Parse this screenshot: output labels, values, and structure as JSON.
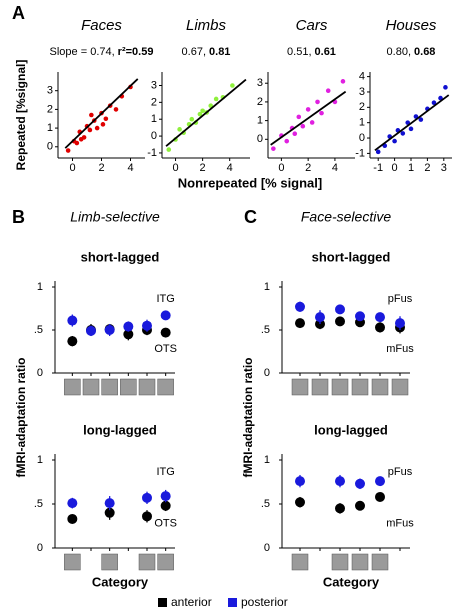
{
  "panels": [
    {
      "label": "A"
    },
    {
      "label": "B",
      "title": "Limb-selective"
    },
    {
      "label": "C",
      "title": "Face-selective"
    }
  ],
  "chart_data": [
    {
      "type": "scatter",
      "title": "Faces",
      "slope_text": "Slope = 0.74,",
      "r2_text": "r²=0.59",
      "color": "#e00000",
      "ylabel": "Repeated [%signal]",
      "xlabel": "Nonrepeated [% signal]",
      "xlim": [
        -1,
        5
      ],
      "ylim": [
        -0.6,
        4
      ],
      "xticks": [
        0,
        2,
        4
      ],
      "yticks": [
        0,
        1,
        2,
        3
      ],
      "x": [
        -0.3,
        0.1,
        0.3,
        0.5,
        0.8,
        1.0,
        1.2,
        1.5,
        1.7,
        2.0,
        2.3,
        2.6,
        3.0,
        3.4,
        4.0,
        0.6,
        1.3,
        2.1
      ],
      "y": [
        -0.2,
        0.3,
        0.2,
        0.8,
        0.5,
        1.1,
        0.9,
        1.4,
        1.0,
        1.8,
        1.5,
        2.2,
        2.0,
        2.7,
        3.2,
        0.4,
        1.7,
        1.2
      ],
      "fit": {
        "x": [
          -0.5,
          4.5
        ],
        "y": [
          -0.07,
          3.63
        ]
      }
    },
    {
      "type": "scatter",
      "title": "Limbs",
      "slope_text": "0.67,",
      "r2_text": "0.81",
      "color": "#8ff03c",
      "xlim": [
        -1,
        5.5
      ],
      "ylim": [
        -1.3,
        3.8
      ],
      "xticks": [
        0,
        2,
        4
      ],
      "yticks": [
        -1,
        0,
        1,
        2,
        3
      ],
      "x": [
        -0.5,
        0,
        0.3,
        0.6,
        1,
        1.2,
        1.5,
        1.8,
        2,
        2.3,
        2.6,
        3,
        3.5,
        4.2
      ],
      "y": [
        -0.8,
        -0.2,
        0.4,
        0.2,
        0.7,
        1.0,
        0.8,
        1.3,
        1.5,
        1.4,
        1.8,
        2.2,
        2.3,
        3.0
      ],
      "fit": {
        "x": [
          -0.7,
          5.2
        ],
        "y": [
          -0.6,
          3.35
        ]
      }
    },
    {
      "type": "scatter",
      "title": "Cars",
      "slope_text": "0.51,",
      "r2_text": "0.61",
      "color": "#e020e0",
      "xlim": [
        -1,
        5.5
      ],
      "ylim": [
        -1,
        3.6
      ],
      "xticks": [
        0,
        2,
        4
      ],
      "yticks": [
        0,
        1,
        2,
        3
      ],
      "x": [
        -0.6,
        0,
        0.4,
        0.8,
        1,
        1.3,
        1.6,
        2,
        2.3,
        2.7,
        3,
        3.5,
        4,
        4.6
      ],
      "y": [
        -0.5,
        0.2,
        -0.1,
        0.6,
        0.3,
        1.2,
        0.7,
        1.6,
        0.9,
        2.0,
        1.4,
        2.6,
        2.0,
        3.1
      ],
      "fit": {
        "x": [
          -0.8,
          4.8
        ],
        "y": [
          -0.3,
          2.55
        ]
      }
    },
    {
      "type": "scatter",
      "title": "Houses",
      "slope_text": "0.80,",
      "r2_text": "0.68",
      "color": "#1010d0",
      "xlim": [
        -1.5,
        3.5
      ],
      "ylim": [
        -1.3,
        4.3
      ],
      "xticks": [
        -1,
        0,
        1,
        2,
        3
      ],
      "yticks": [
        -1,
        0,
        1,
        2,
        3,
        4
      ],
      "x": [
        -1,
        -0.6,
        -0.3,
        0,
        0.2,
        0.5,
        0.8,
        1,
        1.3,
        1.6,
        2,
        2.4,
        2.8,
        3.1
      ],
      "y": [
        -0.9,
        -0.5,
        0.1,
        -0.2,
        0.5,
        0.3,
        1.0,
        0.6,
        1.4,
        1.2,
        1.9,
        2.3,
        2.6,
        3.3
      ],
      "fit": {
        "x": [
          -1.2,
          3.3
        ],
        "y": [
          -0.8,
          2.8
        ]
      }
    },
    {
      "type": "dot",
      "title": "short-lagged",
      "ylabel": "fMRI-adaptation ratio",
      "ylim": [
        0,
        1
      ],
      "yticks": [
        0,
        {
          "value": 0.5,
          "label": ".5"
        },
        1
      ],
      "categories": [
        null,
        null,
        null,
        null,
        null,
        null
      ],
      "series": [
        {
          "name": "anterior",
          "color": "#000000",
          "region": "OTS",
          "values": [
            0.37,
            0.5,
            0.51,
            0.45,
            0.5,
            0.47
          ],
          "errors": [
            0.06,
            0.07,
            0.06,
            0.07,
            0.06,
            0.05
          ]
        },
        {
          "name": "posterior",
          "color": "#1a1adc",
          "region": "ITG",
          "values": [
            0.61,
            0.49,
            0.5,
            0.54,
            0.55,
            0.67
          ],
          "errors": [
            0.07,
            0.06,
            0.07,
            0.06,
            0.07,
            0.05
          ]
        }
      ]
    },
    {
      "type": "dot",
      "title": "long-lagged",
      "xlabel": "Category",
      "ylim": [
        0,
        1
      ],
      "yticks": [
        0,
        {
          "value": 0.5,
          "label": ".5"
        },
        1
      ],
      "categories": [
        null,
        null,
        null,
        null,
        null,
        null
      ],
      "series": [
        {
          "name": "anterior",
          "color": "#000000",
          "region": "OTS",
          "values": [
            0.33,
            null,
            0.4,
            null,
            0.36,
            0.48
          ],
          "errors": [
            0.05,
            null,
            0.08,
            null,
            0.07,
            0.06
          ]
        },
        {
          "name": "posterior",
          "color": "#1a1adc",
          "region": "ITG",
          "values": [
            0.51,
            null,
            0.51,
            null,
            0.57,
            0.59
          ],
          "errors": [
            0.06,
            null,
            0.08,
            null,
            0.07,
            0.07
          ]
        }
      ]
    },
    {
      "type": "dot",
      "title": "short-lagged",
      "ylabel": "fMRI-adaptation ratio",
      "ylim": [
        0,
        1
      ],
      "yticks": [
        0,
        {
          "value": 0.5,
          "label": ".5"
        },
        1
      ],
      "categories": [
        null,
        null,
        null,
        null,
        null,
        null
      ],
      "series": [
        {
          "name": "anterior",
          "color": "#000000",
          "region": "mFus",
          "values": [
            0.58,
            0.57,
            0.6,
            0.59,
            0.53,
            0.53
          ],
          "errors": [
            0.05,
            0.06,
            0.04,
            0.05,
            0.06,
            0.07
          ]
        },
        {
          "name": "posterior",
          "color": "#1a1adc",
          "region": "pFus",
          "values": [
            0.77,
            0.65,
            0.74,
            0.66,
            0.65,
            0.58
          ],
          "errors": [
            0.06,
            0.08,
            0.05,
            0.04,
            0.05,
            0.08
          ]
        }
      ]
    },
    {
      "type": "dot",
      "title": "long-lagged",
      "xlabel": "Category",
      "ylim": [
        0,
        1
      ],
      "yticks": [
        0,
        {
          "value": 0.5,
          "label": ".5"
        },
        1
      ],
      "categories": [
        null,
        null,
        null,
        null,
        null,
        null
      ],
      "series": [
        {
          "name": "anterior",
          "color": "#000000",
          "region": "mFus",
          "values": [
            0.52,
            null,
            0.45,
            0.48,
            0.58,
            null
          ],
          "errors": [
            0.06,
            null,
            0.06,
            0.05,
            0.05,
            null
          ]
        },
        {
          "name": "posterior",
          "color": "#1a1adc",
          "region": "pFus",
          "values": [
            0.76,
            null,
            0.76,
            0.73,
            0.76,
            null
          ],
          "errors": [
            0.07,
            null,
            0.07,
            0.06,
            0.05,
            null
          ]
        }
      ]
    }
  ]
}
